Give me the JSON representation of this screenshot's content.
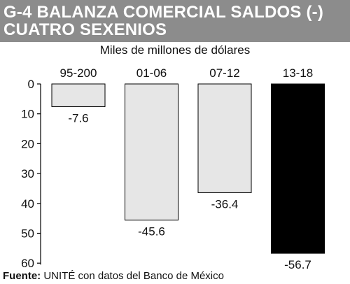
{
  "chart_data": {
    "type": "bar",
    "title": "G-4 BALANZA COMERCIAL SALDOS (-) CUATRO SEXENIOS",
    "subtitle": "Miles de millones de dólares",
    "categories": [
      "95-200",
      "01-06",
      "07-12",
      "13-18"
    ],
    "values": [
      -7.6,
      -45.6,
      -36.4,
      -56.7
    ],
    "value_labels": [
      "-7.6",
      "-45.6",
      "-36.4",
      "-56.7"
    ],
    "bar_colors": [
      "#e6e6e6",
      "#e6e6e6",
      "#e6e6e6",
      "#000000"
    ],
    "yticks": [
      "0",
      "10",
      "20",
      "30",
      "40",
      "50",
      "60"
    ],
    "ylim": [
      0,
      60
    ],
    "y_inverted": true,
    "xlabel": "",
    "ylabel": "",
    "grid": false,
    "legend": "none"
  },
  "source": {
    "label": "Fuente:",
    "text": " UNITÉ con datos del Banco de México"
  }
}
